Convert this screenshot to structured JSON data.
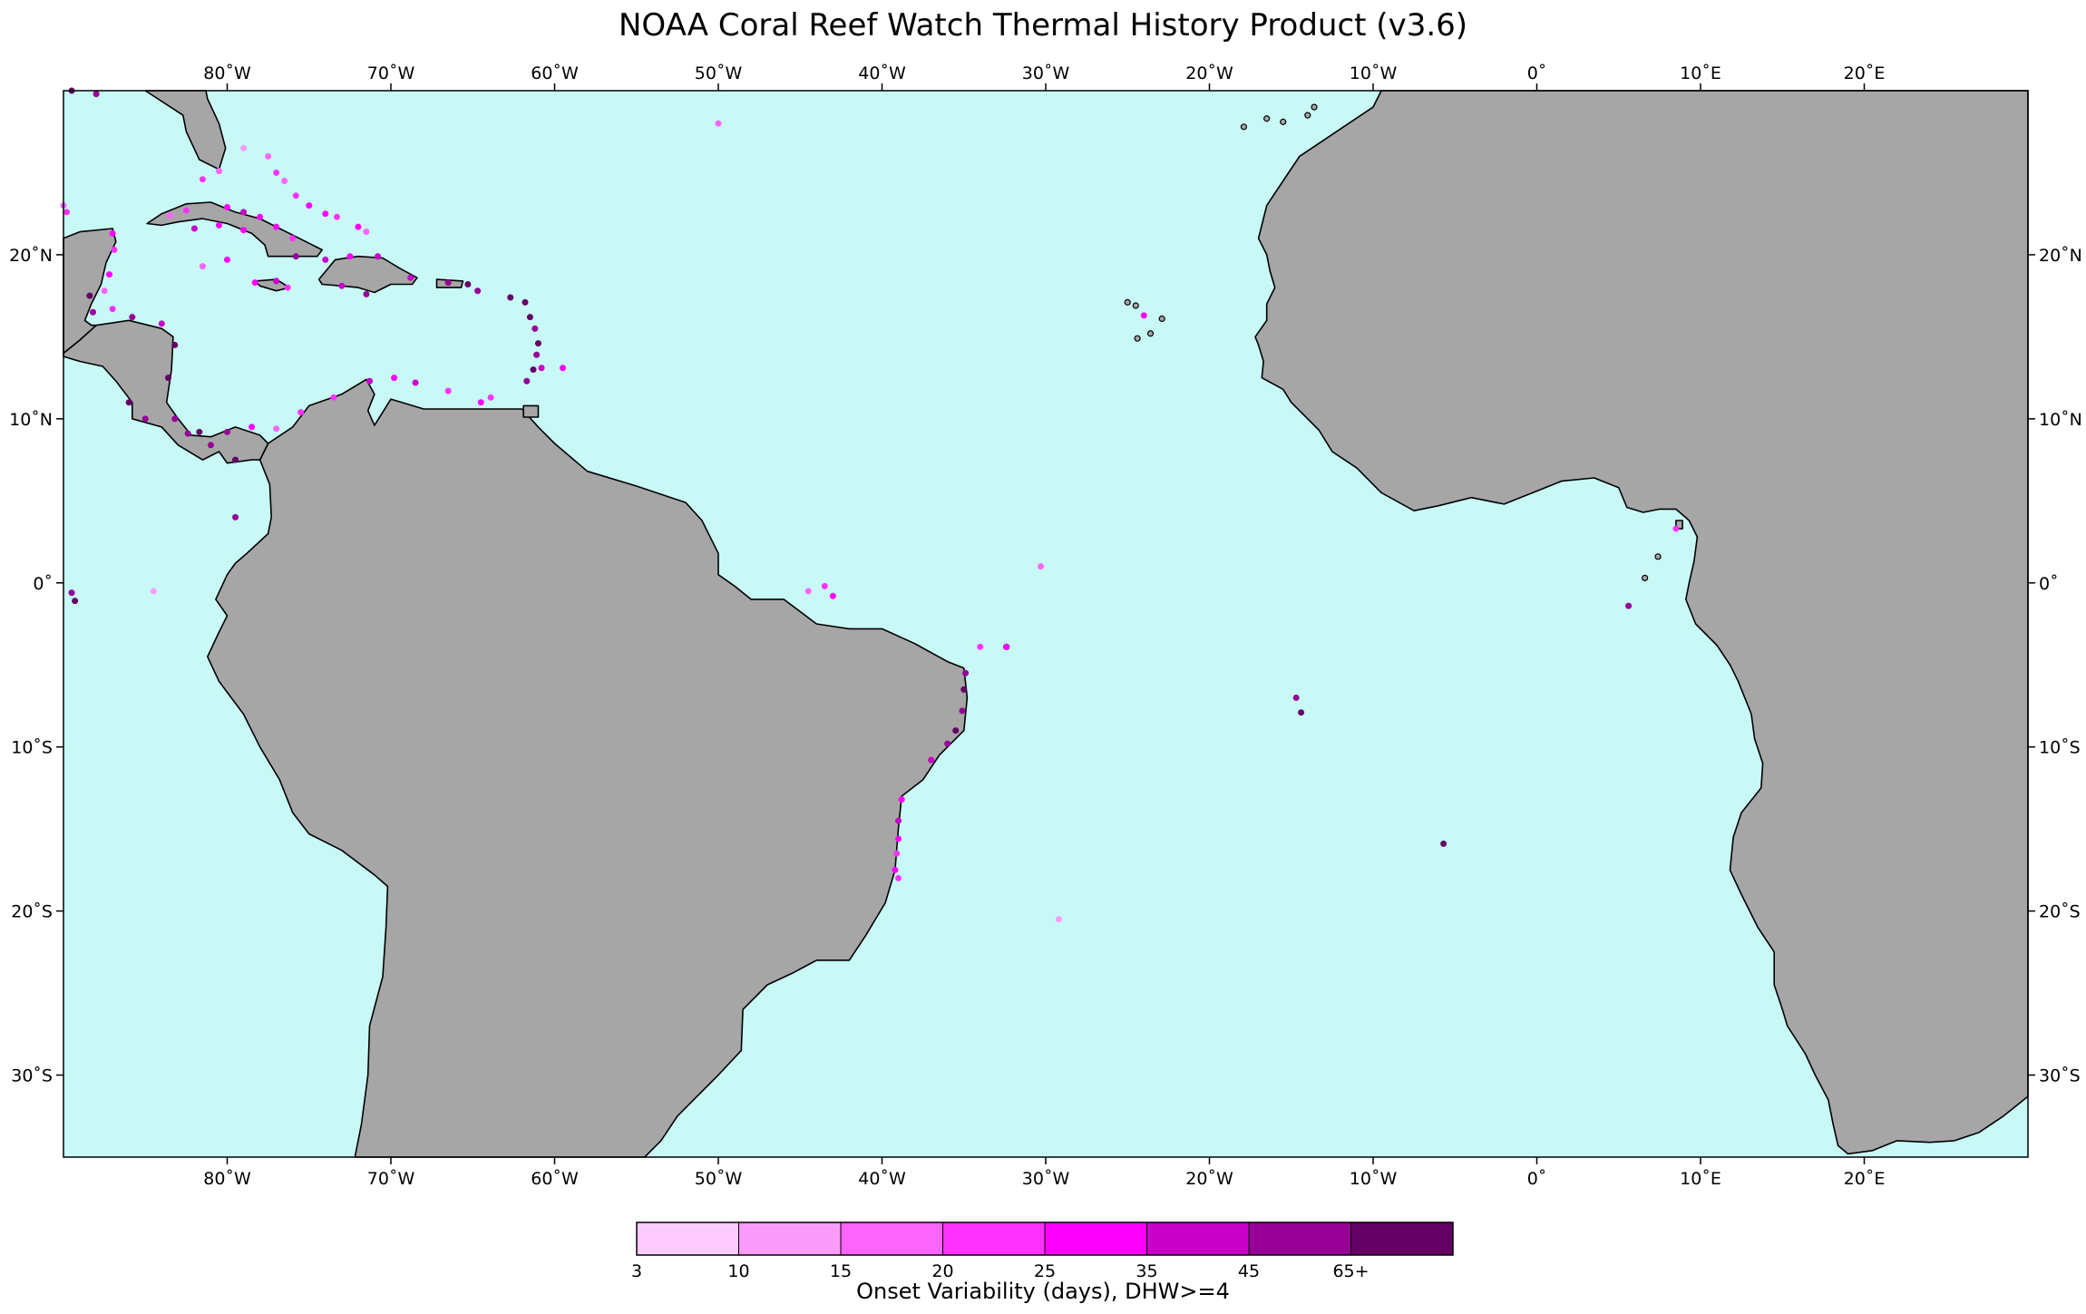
{
  "title": "NOAA Coral Reef Watch Thermal History Product (v3.6)",
  "map": {
    "lon_range": [
      -90,
      30
    ],
    "lat_range": [
      -35,
      30
    ],
    "ocean_color": "#c8f9f7",
    "land_color": "#a6a6a6",
    "coast_color": "#000000"
  },
  "axes": {
    "lon_ticks": [
      {
        "value": -80,
        "label": "80˚W"
      },
      {
        "value": -70,
        "label": "70˚W"
      },
      {
        "value": -60,
        "label": "60˚W"
      },
      {
        "value": -50,
        "label": "50˚W"
      },
      {
        "value": -40,
        "label": "40˚W"
      },
      {
        "value": -30,
        "label": "30˚W"
      },
      {
        "value": -20,
        "label": "20˚W"
      },
      {
        "value": -10,
        "label": "10˚W"
      },
      {
        "value": 0,
        "label": "0˚"
      },
      {
        "value": 10,
        "label": "10˚E"
      },
      {
        "value": 20,
        "label": "20˚E"
      }
    ],
    "lat_ticks": [
      {
        "value": 20,
        "label": "20˚N"
      },
      {
        "value": 10,
        "label": "10˚N"
      },
      {
        "value": 0,
        "label": "0˚"
      },
      {
        "value": -10,
        "label": "10˚S"
      },
      {
        "value": -20,
        "label": "20˚S"
      },
      {
        "value": -30,
        "label": "30˚S"
      }
    ]
  },
  "colorbar": {
    "label": "Onset Variability (days), DHW>=4",
    "colors": [
      "#fccafc",
      "#fa9bfa",
      "#fc64fc",
      "#fc32fc",
      "#fc00fc",
      "#c800c8",
      "#960096",
      "#640064"
    ],
    "tick_labels": [
      "3",
      "10",
      "15",
      "20",
      "25",
      "35",
      "45",
      "65+"
    ]
  }
}
